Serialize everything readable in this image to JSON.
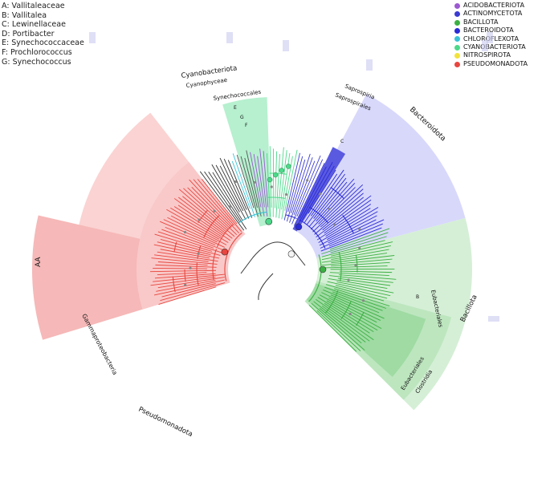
{
  "key": [
    "A: Vallitaleaceae",
    "B: Vallitalea",
    "C: Lewinellaceae",
    "D: Portibacter",
    "E: Synechococcaceae",
    "F: Prochlorococcus",
    "G: Synechococcus"
  ],
  "legend": [
    {
      "label": "ACIDOBACTERIOTA",
      "color": "#9b59d0"
    },
    {
      "label": "ACTINOMYCETOTA",
      "color": "#3b3bd1"
    },
    {
      "label": "BACILLOTA",
      "color": "#3cb043"
    },
    {
      "label": "BACTEROIDOTA",
      "color": "#2a2ad8"
    },
    {
      "label": "CHLOROFLEXOTA",
      "color": "#39c2d7"
    },
    {
      "label": "CYANOBACTERIOTA",
      "color": "#4cd98a"
    },
    {
      "label": "NITROSPIROTA",
      "color": "#f2e33a"
    },
    {
      "label": "PSEUDOMONADOTA",
      "color": "#e8463f"
    }
  ],
  "labels": {
    "cyanobacteriota": "Cyanobacteriota",
    "cyanophyceae": "Cyanophyceae",
    "synechococcales": "Synechococcales",
    "E": "E",
    "G": "G",
    "F": "F",
    "saprospiria": "Saprospiria",
    "saprospirales": "Saprospirales",
    "C": "C",
    "bacteroidota": "Bacteroidota",
    "AA": "AA",
    "gammaproteobacteria": "Gammaproteobacteria",
    "pseudomonadota": "Pseudomonadota",
    "B": "B",
    "eubacteriales_top": "Eubacteriales",
    "bacillota": "Bacillota",
    "eubacteriales": "Eubacteriales",
    "clostridia": "Clostridia"
  }
}
